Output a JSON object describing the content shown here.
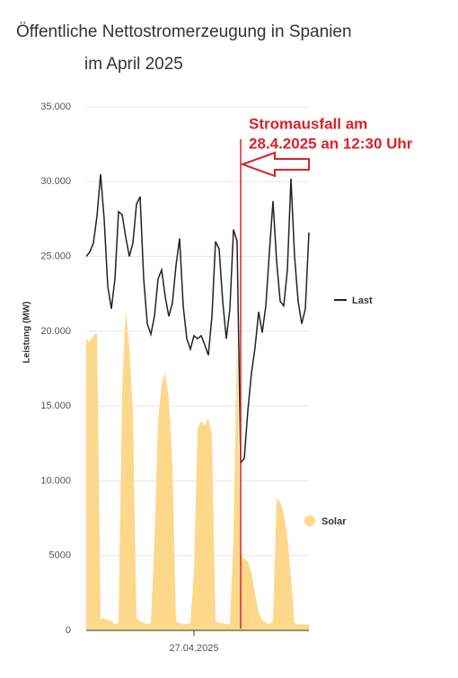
{
  "chart_data": {
    "type": "line-area",
    "title": [
      "Öffentliche Nettostromerzeugung in Spanien",
      "im April 2025"
    ],
    "y_label": "Leistung (MW)",
    "annotation": [
      "Stromausfall am",
      "28.4.2025 an 12:30 Uhr"
    ],
    "categories": [
      null,
      null,
      null,
      null,
      null,
      null,
      null,
      null,
      null,
      null,
      null,
      null,
      null,
      null,
      null,
      null,
      null,
      null,
      null,
      null,
      null,
      null,
      null,
      null,
      null,
      null,
      null,
      null,
      null,
      null,
      "27.04.2025",
      null,
      null,
      null,
      null,
      null,
      null,
      null,
      null,
      null,
      null,
      null,
      null,
      null,
      null,
      null,
      null,
      null,
      null,
      null,
      null,
      null,
      null,
      null,
      null,
      null,
      null,
      null,
      null,
      null,
      null,
      null,
      null
    ],
    "series": [
      {
        "name": "Last",
        "color": "#222222",
        "kind": "line",
        "values": [
          25000,
          25300,
          25900,
          27700,
          30500,
          27500,
          23000,
          21500,
          23500,
          28000,
          27800,
          26300,
          25000,
          25900,
          28500,
          29000,
          23500,
          20500,
          19800,
          21000,
          23500,
          24100,
          22300,
          21000,
          21900,
          24400,
          26200,
          21700,
          19500,
          18800,
          19700,
          19500,
          19700,
          19100,
          18400,
          21000,
          26000,
          25500,
          22000,
          19500,
          21500,
          26800,
          26000,
          11200,
          11500,
          14700,
          17200,
          18900,
          21300,
          19900,
          21700,
          25300,
          28700,
          24700,
          22000,
          21700,
          24100,
          30200,
          25000,
          22000,
          20500,
          21500,
          26600
        ]
      },
      {
        "name": "Solar",
        "color": "#fdd88a",
        "kind": "area",
        "values": [
          19500,
          19300,
          19700,
          19900,
          800,
          800,
          700,
          600,
          400,
          500,
          16000,
          21400,
          19000,
          14500,
          800,
          600,
          500,
          400,
          500,
          6000,
          14000,
          16500,
          17200,
          15500,
          11000,
          600,
          500,
          400,
          400,
          500,
          4000,
          13500,
          14000,
          13700,
          14200,
          13000,
          600,
          500,
          500,
          400,
          400,
          6000,
          19500,
          5000,
          4800,
          4600,
          3800,
          2500,
          1200,
          700,
          500,
          400,
          600,
          8800,
          8600,
          7800,
          6300,
          3500,
          500,
          400,
          400,
          400,
          400
        ]
      }
    ],
    "ylim": [
      0,
      35000
    ],
    "yticks": [
      0,
      5000,
      {
        "value": 10000,
        "label": "10.000"
      },
      {
        "value": 15000,
        "label": "15.000"
      },
      {
        "value": 20000,
        "label": "20.000"
      },
      {
        "value": 25000,
        "label": "25.000"
      },
      {
        "value": 30000,
        "label": "30.000"
      },
      {
        "value": 35000,
        "label": "35.000"
      }
    ],
    "grid": true
  }
}
